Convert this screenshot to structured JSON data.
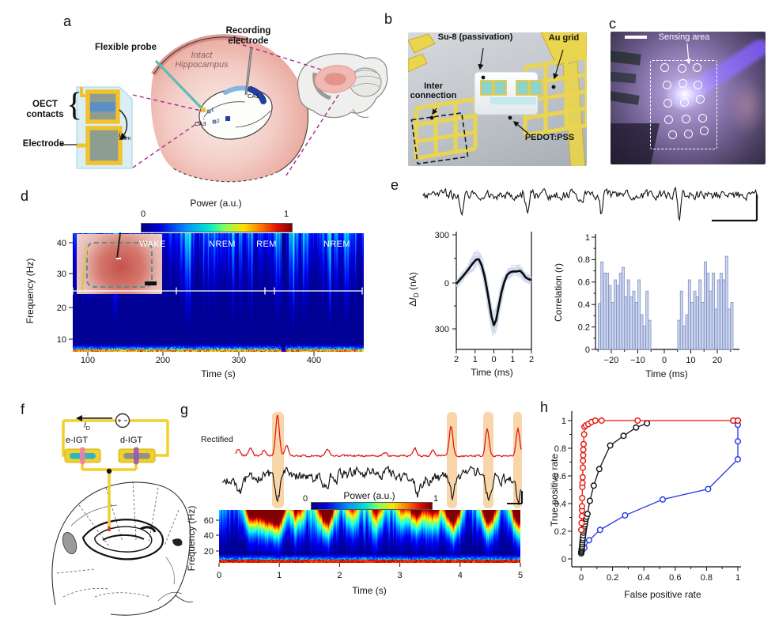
{
  "panels": {
    "a": {
      "letter": "a",
      "flexible_probe": "Flexible probe",
      "recording_electrode": "Recording electrode",
      "intact": "Intact Hippocampus",
      "oect": "OECT contacts",
      "electrode": "Electrode",
      "istim_i": "i",
      "istim_sub": "stim",
      "ca1": "CA1",
      "ca3": "CA3",
      "m1": "1",
      "m2": "2",
      "brace": "{"
    },
    "b": {
      "letter": "b",
      "su8": "Su-8 (passivation)",
      "au": "Au grid",
      "inter": "Inter connection",
      "pedot": "PEDOT:PSS"
    },
    "c": {
      "letter": "c",
      "sensing": "Sensing area",
      "sites": [
        [
          67,
          44
        ],
        [
          89,
          45
        ],
        [
          108,
          44
        ],
        [
          70,
          66
        ],
        [
          90,
          64
        ],
        [
          109,
          66
        ],
        [
          71,
          89
        ],
        [
          92,
          88
        ],
        [
          112,
          84
        ],
        [
          72,
          110
        ],
        [
          94,
          109
        ],
        [
          115,
          108
        ],
        [
          77,
          129
        ],
        [
          97,
          128
        ],
        [
          117,
          124
        ]
      ]
    },
    "d": {
      "letter": "d",
      "colorbar": {
        "title": "Power (a.u.)",
        "min": "0",
        "max": "1"
      },
      "ylabel": "Frequency (Hz)",
      "xlabel": "Time (s)",
      "yticks": [
        "40",
        "30",
        "20",
        "10"
      ],
      "xticks": [
        "100",
        "200",
        "300",
        "400"
      ],
      "stages": [
        "WAKE",
        "NREM",
        "REM",
        "NREM"
      ]
    },
    "e": {
      "letter": "e",
      "spike": {
        "ylabel_delta": "Δ",
        "ylabel_i": "I",
        "ylabel_sub": "D",
        "ylabel_unit": " (nA)",
        "yticks": [
          "300",
          "0",
          "300"
        ],
        "xticks": [
          "2",
          "1",
          "0",
          "1",
          "2"
        ],
        "xlabel": "Time (ms)"
      },
      "corr": {
        "ylabel": "Correlation (r)",
        "yticks": [
          "1",
          "0.8",
          "0.6",
          "0.4",
          "0.2",
          "0"
        ],
        "xticks": [
          "−20",
          "−10",
          "0",
          "10",
          "20"
        ],
        "xlabel": "Time (ms)"
      }
    },
    "f": {
      "letter": "f",
      "i_label": "I",
      "i_sub": "D",
      "eigt": "e-IGT",
      "digt": "d-IGT"
    },
    "g": {
      "letter": "g",
      "rectified": "Rectified",
      "colorbar": {
        "title": "Power (a.u.)",
        "min": "0",
        "max": "1"
      },
      "ylabel": "Frequency (Hz)",
      "xlabel": "Time (s)",
      "yticks": [
        "60",
        "40",
        "20"
      ],
      "xticks": [
        "0",
        "1",
        "2",
        "3",
        "4",
        "5"
      ]
    },
    "h": {
      "letter": "h",
      "ylabel": "True positive rate",
      "xlabel": "False positive rate",
      "yticks": [
        "1",
        "0.8",
        "0.6",
        "0.4",
        "0.2",
        "0"
      ],
      "xticks": [
        "0",
        "0.2",
        "0.4",
        "0.6",
        "0.8",
        "1"
      ]
    }
  },
  "chart_data": [
    {
      "id": "d-spectrogram",
      "type": "heatmap",
      "xlabel": "Time (s)",
      "ylabel": "Frequency (Hz)",
      "x_range": [
        50,
        500
      ],
      "xticks": [
        100,
        200,
        300,
        400
      ],
      "y_range": [
        5,
        45
      ],
      "yticks": [
        10,
        20,
        30,
        40
      ],
      "colormap": "jet",
      "colorbar": {
        "label": "Power (a.u.)",
        "range": [
          0,
          1
        ]
      },
      "stages": [
        {
          "label": "WAKE",
          "t_frac": [
            0,
            0.356
          ]
        },
        {
          "label": "NREM",
          "t_frac": [
            0.356,
            0.66
          ]
        },
        {
          "label": "REM",
          "t_frac": [
            0.66,
            0.693
          ]
        },
        {
          "label": "NREM",
          "t_frac": [
            0.693,
            1
          ]
        }
      ],
      "gap_frac": 0.722
    },
    {
      "id": "e-spike-waveform",
      "type": "line",
      "xlabel": "Time (ms)",
      "ylabel": "ΔID (nA)",
      "xlim": [
        -2,
        2
      ],
      "ylim": [
        -300,
        300
      ],
      "n_overlaid_traces": 26,
      "mean": [
        [
          -2,
          -5
        ],
        [
          -1.7,
          35
        ],
        [
          -1.4,
          78
        ],
        [
          -1.15,
          118
        ],
        [
          -0.95,
          145
        ],
        [
          -0.8,
          148
        ],
        [
          -0.65,
          110
        ],
        [
          -0.5,
          45
        ],
        [
          -0.38,
          -30
        ],
        [
          -0.25,
          -120
        ],
        [
          -0.12,
          -210
        ],
        [
          0,
          -262
        ],
        [
          0.12,
          -230
        ],
        [
          0.25,
          -150
        ],
        [
          0.4,
          -60
        ],
        [
          0.55,
          5
        ],
        [
          0.7,
          48
        ],
        [
          0.85,
          66
        ],
        [
          1,
          72
        ],
        [
          1.2,
          72
        ],
        [
          1.4,
          76
        ],
        [
          1.55,
          58
        ],
        [
          1.7,
          34
        ],
        [
          1.85,
          24
        ],
        [
          2,
          18
        ]
      ]
    },
    {
      "id": "e-correlation",
      "type": "bar",
      "xlabel": "Time (ms)",
      "ylabel": "Correlation (r)",
      "ylim": [
        0,
        1
      ],
      "xlim": [
        -26,
        28
      ],
      "bins_negative": {
        "t_start": -24.5,
        "dt": 1,
        "values": [
          0.41,
          0.78,
          0.68,
          0.68,
          0.57,
          0.42,
          0.62,
          0.57,
          0.68,
          0.73,
          0.47,
          0.62,
          0.47,
          0.52,
          0.42,
          0.62,
          0.31,
          0.21,
          0.52,
          0.26
        ]
      },
      "bins_positive": {
        "t_start": 5.5,
        "dt": 1,
        "values": [
          0.26,
          0.52,
          0.21,
          0.31,
          0.62,
          0.42,
          0.52,
          0.47,
          0.62,
          0.42,
          0.78,
          0.68,
          0.52,
          0.68,
          0.36,
          0.62,
          0.68,
          0.62,
          0.83,
          0.36,
          0.42
        ]
      }
    },
    {
      "id": "g-spectrogram",
      "type": "heatmap",
      "xlabel": "Time (s)",
      "ylabel": "Frequency (Hz)",
      "x_range": [
        0,
        5
      ],
      "xticks": [
        0,
        1,
        2,
        3,
        4,
        5
      ],
      "y_range": [
        5,
        75
      ],
      "yticks": [
        20,
        40,
        60
      ],
      "colormap": "jet",
      "colorbar": {
        "label": "Power (a.u.)",
        "range": [
          0,
          1
        ]
      },
      "highlights_s": [
        [
          0.88,
          1.08
        ],
        [
          3.78,
          3.95
        ],
        [
          4.38,
          4.55
        ],
        [
          4.88,
          5.03
        ]
      ],
      "hotspots": [
        [
          0.55,
          0.8
        ],
        [
          0.78,
          0.8
        ],
        [
          0.97,
          1.0
        ],
        [
          1.3,
          0.45
        ],
        [
          1.78,
          0.95
        ],
        [
          2.2,
          0.35
        ],
        [
          2.62,
          0.4
        ],
        [
          3.05,
          0.35
        ],
        [
          3.28,
          0.65
        ],
        [
          3.55,
          0.5
        ],
        [
          3.87,
          1.0
        ],
        [
          4.47,
          0.9
        ],
        [
          4.97,
          0.95
        ]
      ]
    },
    {
      "id": "h-roc",
      "type": "line",
      "xlabel": "False positive rate",
      "ylabel": "True positive rate",
      "xlim": [
        0,
        1
      ],
      "ylim": [
        0,
        1
      ],
      "marker": "open-circle",
      "series": [
        {
          "name": "red",
          "color": "#e8150c",
          "points": [
            [
              0,
              0.21
            ],
            [
              0.002,
              0.26
            ],
            [
              0.004,
              0.31
            ],
            [
              0.005,
              0.35
            ],
            [
              0.005,
              0.38
            ],
            [
              0.006,
              0.44
            ],
            [
              0.007,
              0.52
            ],
            [
              0.008,
              0.55
            ],
            [
              0.009,
              0.59
            ],
            [
              0.01,
              0.66
            ],
            [
              0.011,
              0.71
            ],
            [
              0.012,
              0.75
            ],
            [
              0.013,
              0.79
            ],
            [
              0.015,
              0.83
            ],
            [
              0.018,
              0.9
            ],
            [
              0.02,
              0.955
            ],
            [
              0.03,
              0.965
            ],
            [
              0.045,
              0.975
            ],
            [
              0.065,
              0.99
            ],
            [
              0.09,
              1
            ],
            [
              0.13,
              1
            ],
            [
              0.36,
              1
            ],
            [
              0.97,
              1
            ],
            [
              1,
              1
            ]
          ]
        },
        {
          "name": "black",
          "color": "#111111",
          "points": [
            [
              0,
              0.04
            ],
            [
              0.001,
              0.05
            ],
            [
              0.002,
              0.06
            ],
            [
              0.003,
              0.07
            ],
            [
              0.004,
              0.08
            ],
            [
              0.005,
              0.09
            ],
            [
              0.006,
              0.105
            ],
            [
              0.007,
              0.12
            ],
            [
              0.009,
              0.135
            ],
            [
              0.01,
              0.15
            ],
            [
              0.012,
              0.17
            ],
            [
              0.014,
              0.19
            ],
            [
              0.016,
              0.205
            ],
            [
              0.018,
              0.22
            ],
            [
              0.02,
              0.235
            ],
            [
              0.023,
              0.25
            ],
            [
              0.026,
              0.27
            ],
            [
              0.03,
              0.29
            ],
            [
              0.034,
              0.305
            ],
            [
              0.04,
              0.325
            ],
            [
              0.055,
              0.42
            ],
            [
              0.08,
              0.53
            ],
            [
              0.115,
              0.65
            ],
            [
              0.185,
              0.82
            ],
            [
              0.27,
              0.89
            ],
            [
              0.35,
              0.95
            ],
            [
              0.42,
              0.98
            ]
          ]
        },
        {
          "name": "blue",
          "color": "#2438e8",
          "points": [
            [
              0,
              0.05
            ],
            [
              0.004,
              0.06
            ],
            [
              0.01,
              0.07
            ],
            [
              0.02,
              0.08
            ],
            [
              0.05,
              0.135
            ],
            [
              0.12,
              0.21
            ],
            [
              0.28,
              0.315
            ],
            [
              0.52,
              0.43
            ],
            [
              0.81,
              0.505
            ],
            [
              1,
              0.72
            ],
            [
              1,
              0.85
            ],
            [
              1,
              0.97
            ],
            [
              0.97,
              1
            ],
            [
              1,
              1
            ]
          ]
        }
      ]
    }
  ],
  "trace_params": {
    "e_trace_spike_fractions": [
      0.115,
      0.31,
      0.53,
      0.765
    ],
    "g_red_spikes": [
      [
        0.32,
        8
      ],
      [
        0.52,
        10
      ],
      [
        0.75,
        7
      ],
      [
        0.97,
        52
      ],
      [
        1.12,
        14
      ],
      [
        1.8,
        9
      ],
      [
        2.75,
        4
      ],
      [
        3.25,
        10
      ],
      [
        3.55,
        7
      ],
      [
        3.85,
        38
      ],
      [
        4.45,
        34
      ],
      [
        4.96,
        33
      ]
    ],
    "g_black_dips": [
      [
        0.35,
        16
      ],
      [
        0.98,
        28
      ],
      [
        1.75,
        10
      ],
      [
        3.3,
        18
      ],
      [
        3.87,
        26
      ],
      [
        4.47,
        27
      ],
      [
        4.97,
        28
      ]
    ]
  }
}
